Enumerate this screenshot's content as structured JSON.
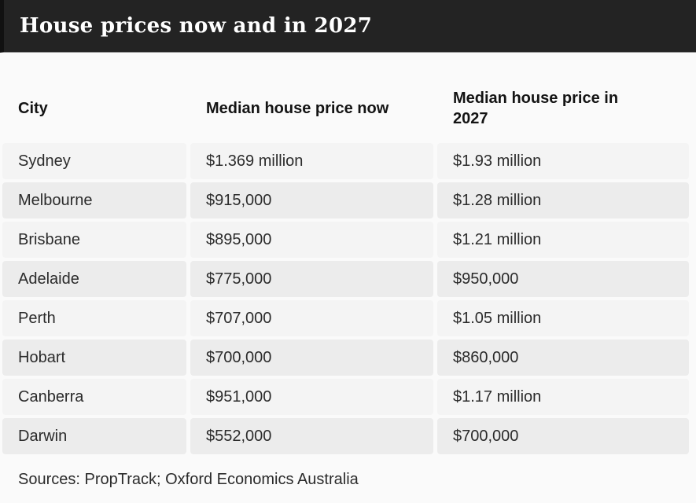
{
  "chart_data": {
    "type": "table",
    "title": "House prices now and in 2027",
    "columns": [
      "City",
      "Median house price now",
      "Median house price in 2027"
    ],
    "rows": [
      [
        "Sydney",
        "$1.369 million",
        "$1.93 million"
      ],
      [
        "Melbourne",
        "$915,000",
        "$1.28 million"
      ],
      [
        "Brisbane",
        "$895,000",
        "$1.21 million"
      ],
      [
        "Adelaide",
        "$775,000",
        "$950,000"
      ],
      [
        "Perth",
        "$707,000",
        "$1.05 million"
      ],
      [
        "Hobart",
        "$700,000",
        "$860,000"
      ],
      [
        "Canberra",
        "$951,000",
        "$1.17 million"
      ],
      [
        "Darwin",
        "$552,000",
        "$700,000"
      ]
    ],
    "source_note": "Sources: PropTrack; Oxford Economics Australia",
    "layout_hints": {
      "striped_rows": true,
      "stripe_pattern": "odd rows darker, even rows lighter"
    }
  },
  "colors": {
    "title_bar_bg": "#232323",
    "title_text": "#ffffff",
    "odd_row_bg": "#ececec",
    "even_row_bg": "#f4f4f4",
    "page_bg": "#fafafa",
    "body_text": "#2b2b2b",
    "header_text": "#141414"
  }
}
